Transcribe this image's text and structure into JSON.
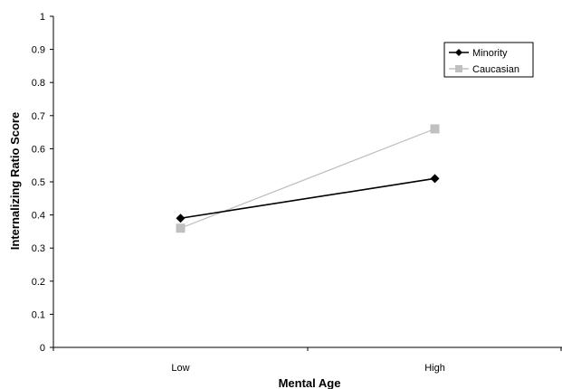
{
  "chart_data": {
    "type": "line",
    "title": "",
    "xlabel": "Mental Age",
    "ylabel": "Internalizing Ratio Score",
    "categories": [
      "Low",
      "High"
    ],
    "ylim": [
      0,
      1
    ],
    "yticks": [
      "0",
      "0.1",
      "0.2",
      "0.3",
      "0.4",
      "0.5",
      "0.6",
      "0.7",
      "0.8",
      "0.9",
      "1"
    ],
    "grid": false,
    "legend_position": "top-right",
    "series": [
      {
        "name": "Minority",
        "values": [
          0.39,
          0.51
        ],
        "color": "#000000",
        "marker": "diamond"
      },
      {
        "name": "Caucasian",
        "values": [
          0.36,
          0.66
        ],
        "color": "#c0c0c0",
        "marker": "square"
      }
    ]
  }
}
